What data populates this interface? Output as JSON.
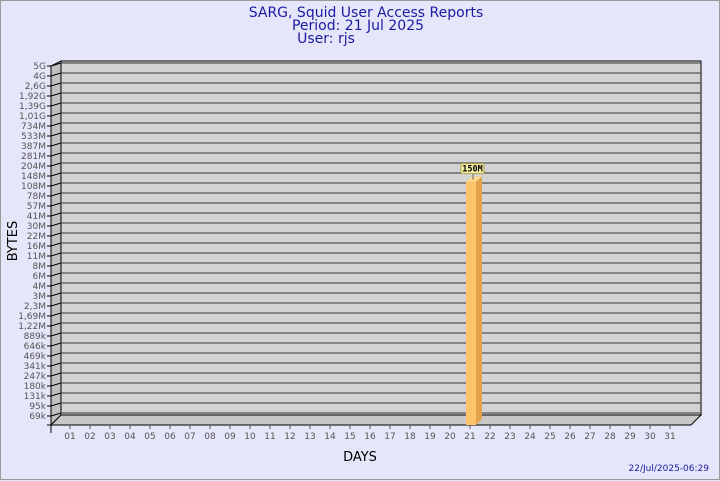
{
  "header": {
    "title": "SARG, Squid User Access Reports",
    "period": "Period: 21 Jul 2025",
    "user": "User: rjs"
  },
  "footer": {
    "timestamp": "22/Jul/2025-06:29"
  },
  "colors": {
    "background": "#e6e6fa",
    "plot": "#d3d3d3",
    "bar": "#fbc46a",
    "bar_side": "#e0a24a",
    "text": "#1a1aa0"
  },
  "chart_data": {
    "type": "bar",
    "title": "SARG, Squid User Access Reports",
    "xlabel": "DAYS",
    "ylabel": "BYTES",
    "y_scale": "log",
    "y_ticks": [
      "5G",
      "4G",
      "2,6G",
      "1,92G",
      "1,39G",
      "1,01G",
      "734M",
      "533M",
      "387M",
      "281M",
      "204M",
      "148M",
      "108M",
      "78M",
      "57M",
      "41M",
      "30M",
      "22M",
      "16M",
      "11M",
      "8M",
      "6M",
      "4M",
      "3M",
      "2,3M",
      "1,69M",
      "1,22M",
      "889k",
      "646k",
      "469k",
      "341k",
      "247k",
      "180k",
      "131k",
      "95k",
      "69k"
    ],
    "y_tick_values": [
      5000000000.0,
      4000000000.0,
      2600000000.0,
      1920000000.0,
      1390000000.0,
      1010000000.0,
      734000000.0,
      533000000.0,
      387000000.0,
      281000000.0,
      204000000.0,
      148000000.0,
      108000000.0,
      78000000.0,
      57000000.0,
      41000000.0,
      30000000.0,
      22000000.0,
      16000000.0,
      11000000.0,
      8000000.0,
      6000000.0,
      4000000.0,
      3000000.0,
      2300000.0,
      1690000.0,
      1220000.0,
      889000.0,
      646000.0,
      469000.0,
      341000.0,
      247000.0,
      180000.0,
      131000.0,
      95000.0,
      69000.0
    ],
    "categories": [
      "01",
      "02",
      "03",
      "04",
      "05",
      "06",
      "07",
      "08",
      "09",
      "10",
      "11",
      "12",
      "13",
      "14",
      "15",
      "16",
      "17",
      "18",
      "19",
      "20",
      "21",
      "22",
      "23",
      "24",
      "25",
      "26",
      "27",
      "28",
      "29",
      "30",
      "31"
    ],
    "bars": [
      {
        "category": "21",
        "value": 150000000,
        "label": "150M"
      }
    ],
    "grid": true
  }
}
